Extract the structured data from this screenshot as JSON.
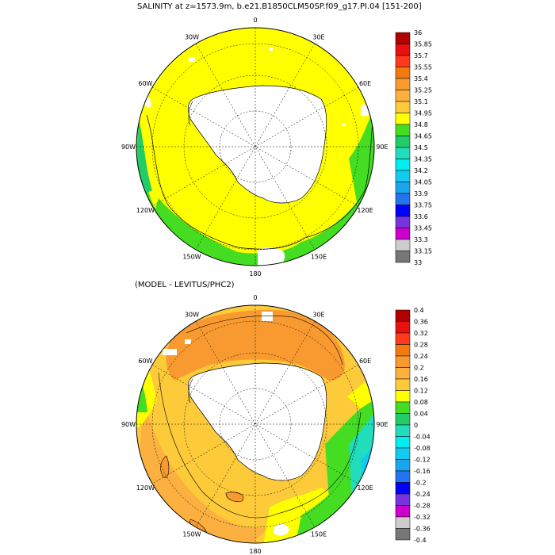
{
  "top_panel": {
    "title": "SALINITY at z=1573.9m, b.e21.B1850CLM50SP.f09_g17.PI.04 [151-200]",
    "lon_labels": [
      "0",
      "30E",
      "60E",
      "90E",
      "120E",
      "150E",
      "180",
      "150W",
      "120W",
      "90W",
      "60W",
      "30W"
    ],
    "colorbar_labels": [
      "36",
      "35.85",
      "35.7",
      "35.55",
      "35.4",
      "35.25",
      "35.1",
      "34.95",
      "34.8",
      "34.65",
      "34.5",
      "34.35",
      "34.2",
      "34.05",
      "33.9",
      "33.75",
      "33.6",
      "33.45",
      "33.3",
      "33.15",
      "33"
    ],
    "colorbar_colors": [
      "#b00000",
      "#e81010",
      "#ff3a1a",
      "#f27a10",
      "#f99a30",
      "#fbb040",
      "#fdca3a",
      "#ffff00",
      "#44dd22",
      "#22cc66",
      "#22ddbb",
      "#00eeee",
      "#11ccee",
      "#1aa6ee",
      "#2275ee",
      "#0000ff",
      "#7733dd",
      "#cc00cc",
      "#cccccc",
      "#777777"
    ]
  },
  "bottom_panel": {
    "title": "(MODEL - LEVITUS/PHC2)",
    "lon_labels": [
      "0",
      "30E",
      "60E",
      "90E",
      "120E",
      "150E",
      "180",
      "150W",
      "120W",
      "90W",
      "60W",
      "30W"
    ],
    "colorbar_labels": [
      "0.4",
      "0.36",
      "0.32",
      "0.28",
      "0.24",
      "0.2",
      "0.16",
      "0.12",
      "0.08",
      "0.04",
      "0",
      "-0.04",
      "-0.08",
      "-0.12",
      "-0.16",
      "-0.2",
      "-0.24",
      "-0.28",
      "-0.32",
      "-0.36",
      "-0.4"
    ],
    "colorbar_colors": [
      "#b00000",
      "#e81010",
      "#ff3a1a",
      "#f27a10",
      "#f99a30",
      "#fbb040",
      "#fdca3a",
      "#ffff00",
      "#44dd22",
      "#22cc66",
      "#22ddbb",
      "#00eeee",
      "#11ccee",
      "#1aa6ee",
      "#2275ee",
      "#0000ff",
      "#7733dd",
      "#cc00cc",
      "#cccccc",
      "#777777"
    ]
  }
}
